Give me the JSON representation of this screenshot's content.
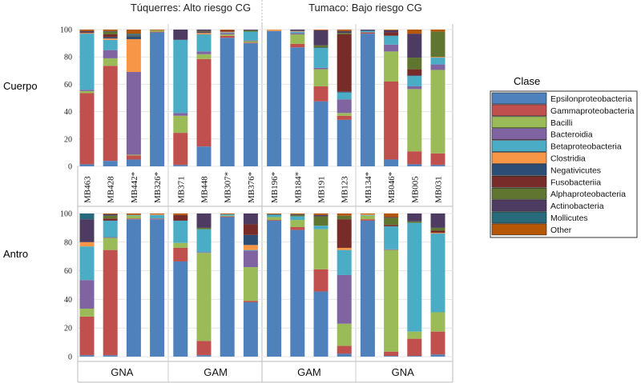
{
  "chart_data": {
    "type": "bar",
    "stacked": true,
    "headers": [
      "Túquerres: Alto riesgo CG",
      "Tumaco: Bajo riesgo CG"
    ],
    "panels": [
      "Cuerpo",
      "Antro"
    ],
    "groups": [
      "GNA",
      "GAM",
      "GAM",
      "GNA"
    ],
    "categories": [
      "MB463",
      "MB428",
      "MB442*",
      "MB326*",
      "MB371",
      "MB448",
      "MB307*",
      "MB376*",
      "MB196*",
      "MB184*",
      "MB191",
      "MB123",
      "MB134*",
      "MB046*",
      "MB005",
      "MB031"
    ],
    "ylim": [
      0,
      100
    ],
    "yticks": [
      0,
      20,
      40,
      60,
      80,
      100
    ],
    "grid": true,
    "legend_title": "Clase",
    "legend_position": "right",
    "series": [
      {
        "name": "Epsilonproteobacteria",
        "color": "#4f81bd"
      },
      {
        "name": "Gammaproteobacteria",
        "color": "#c0504d"
      },
      {
        "name": "Bacilli",
        "color": "#9bbb59"
      },
      {
        "name": "Bacteroidia",
        "color": "#8064a2"
      },
      {
        "name": "Betaproteobacteria",
        "color": "#4bacc6"
      },
      {
        "name": "Clostridia",
        "color": "#f79646"
      },
      {
        "name": "Negativicutes",
        "color": "#2c4d75"
      },
      {
        "name": "Fusobacteriia",
        "color": "#772c2a"
      },
      {
        "name": "Alphaproteobacteria",
        "color": "#5f7530"
      },
      {
        "name": "Actinobacteria",
        "color": "#4d3b62"
      },
      {
        "name": "Mollicutes",
        "color": "#276a7c"
      },
      {
        "name": "Other",
        "color": "#b65708"
      }
    ],
    "values": {
      "Cuerpo": [
        [
          1.5,
          52,
          1.5,
          1,
          41,
          0.5,
          0,
          0.5,
          0,
          1,
          0,
          1
        ],
        [
          4,
          69.5,
          5.5,
          6,
          7.5,
          1,
          1,
          2,
          2,
          0.5,
          0,
          1
        ],
        [
          5,
          3,
          0.5,
          60.5,
          0,
          24,
          2,
          0,
          0.5,
          0.5,
          1,
          3
        ],
        [
          98,
          0.5,
          1,
          0,
          0,
          0,
          0,
          0,
          0,
          0,
          0,
          0.5
        ],
        [
          1,
          23.5,
          12.5,
          2,
          53.5,
          0,
          0,
          0,
          0,
          7.5,
          0,
          0
        ],
        [
          14.5,
          64,
          3.5,
          2,
          12.5,
          1,
          0.5,
          0.5,
          0.5,
          1,
          0,
          0
        ],
        [
          94,
          1.5,
          1,
          1,
          0.5,
          0.5,
          0,
          1,
          0,
          0,
          0,
          0.5
        ],
        [
          90,
          0.5,
          1,
          0.5,
          6.5,
          0,
          0,
          0,
          1,
          0.5,
          0,
          0
        ],
        [
          99,
          0,
          0,
          0,
          0,
          1,
          0,
          0,
          0,
          0,
          0,
          0
        ],
        [
          87,
          2.5,
          7,
          1,
          1,
          0.5,
          0,
          0,
          0,
          1,
          0,
          0
        ],
        [
          47.5,
          11,
          12.5,
          1,
          14.5,
          0,
          0.5,
          0,
          1.5,
          11,
          0,
          0.5
        ],
        [
          34,
          3,
          2,
          10,
          5,
          0,
          0.5,
          42,
          1,
          1.5,
          0,
          1
        ],
        [
          97,
          1,
          0,
          0,
          1,
          0,
          0.5,
          0,
          0,
          0.5,
          0,
          0
        ],
        [
          5,
          57,
          22,
          5,
          6.5,
          0,
          0,
          2.5,
          0,
          1.5,
          0,
          0.5
        ],
        [
          1.5,
          9.5,
          45.5,
          2,
          7.5,
          0,
          0.5,
          4.5,
          8.5,
          17.5,
          0,
          3
        ],
        [
          1,
          8.5,
          61,
          4,
          5,
          0.5,
          0,
          0,
          18.5,
          0,
          0,
          1.5
        ]
      ],
      "Antro": [
        [
          1,
          27,
          5.5,
          20,
          23.5,
          3,
          0,
          0,
          0,
          16,
          4,
          0
        ],
        [
          1,
          73.5,
          8.5,
          0.5,
          11.5,
          0,
          0,
          1.5,
          2,
          1,
          0,
          0.5
        ],
        [
          96,
          0.5,
          2,
          0,
          0.5,
          0,
          0,
          0,
          0,
          0,
          0,
          1
        ],
        [
          96,
          0.5,
          0,
          0,
          2.5,
          0.5,
          0,
          0,
          0,
          0,
          0,
          0.5
        ],
        [
          66.5,
          9.5,
          3.5,
          0,
          15.5,
          0,
          0,
          4,
          0,
          0,
          0,
          1
        ],
        [
          1,
          10,
          61.5,
          0.5,
          16,
          0,
          0,
          0,
          1,
          10,
          0,
          0
        ],
        [
          97.5,
          0.5,
          0.5,
          0,
          1,
          0,
          0,
          0,
          0,
          0,
          0,
          0.5
        ],
        [
          38,
          1,
          23.5,
          11.5,
          0.5,
          3.5,
          7,
          7.5,
          0,
          7.5,
          0,
          0
        ],
        [
          95,
          0.5,
          2,
          0,
          1.5,
          0,
          0,
          0,
          0,
          0,
          0.5,
          0.5
        ],
        [
          88.5,
          2,
          5,
          0,
          2.5,
          0,
          0,
          0,
          1,
          0.5,
          0,
          0.5
        ],
        [
          45.5,
          15.5,
          28,
          0,
          2.5,
          0,
          0,
          0,
          6.5,
          1,
          0,
          1
        ],
        [
          2,
          5.5,
          15.5,
          34,
          17.5,
          1.5,
          0,
          20,
          2.5,
          0,
          0,
          1.5
        ],
        [
          95,
          1,
          2.5,
          0,
          0.5,
          0.5,
          0,
          0,
          0,
          0,
          0,
          0.5
        ],
        [
          0.5,
          3,
          71,
          0.5,
          16,
          0,
          0,
          1,
          5,
          0.5,
          0,
          2.5
        ],
        [
          0.5,
          12,
          5,
          0,
          76,
          0,
          0,
          0,
          1,
          5.5,
          0,
          0
        ],
        [
          1.5,
          16,
          13.5,
          0,
          55,
          0.5,
          0,
          1.5,
          2,
          10,
          0,
          0
        ]
      ]
    }
  }
}
